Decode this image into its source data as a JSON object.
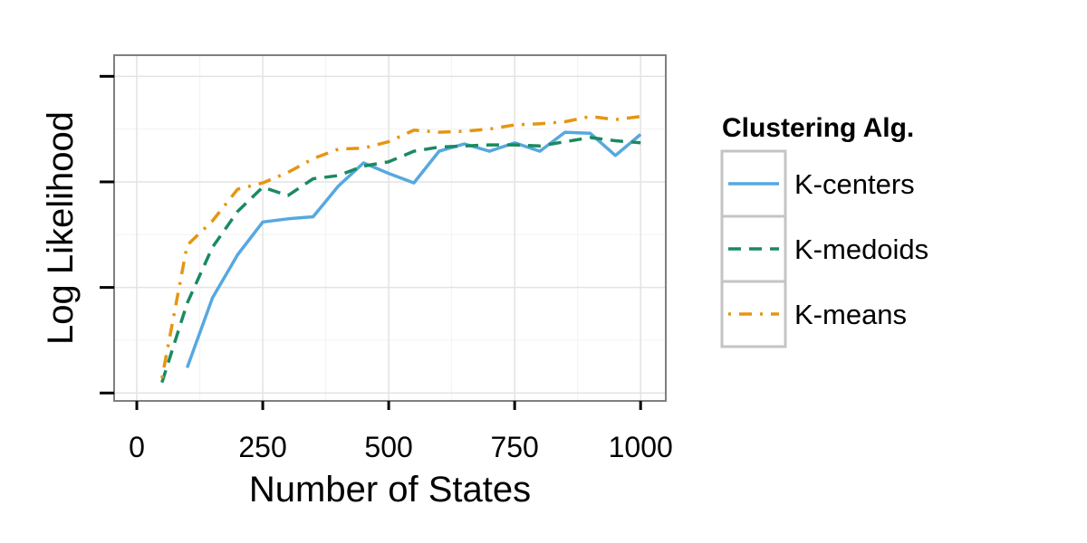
{
  "chart_data": {
    "type": "line",
    "xlabel": "Number of States",
    "ylabel": "Log Likelihood",
    "xlim": [
      -45,
      1050
    ],
    "ylim": [
      0.925,
      4.2
    ],
    "x_ticks": [
      0,
      250,
      500,
      750,
      1000
    ],
    "x_tick_labels": [
      "0",
      "250",
      "500",
      "750",
      "1000"
    ],
    "y_ticks": [
      1,
      2,
      3,
      4
    ],
    "y_tick_labels_visible": false,
    "grid": true,
    "legend": {
      "title": "Clustering Alg.",
      "position": "right"
    },
    "series": [
      {
        "name": "K-centers",
        "color": "#56a8e0",
        "dash": "solid",
        "x": [
          100,
          150,
          200,
          250,
          300,
          350,
          400,
          450,
          500,
          550,
          600,
          650,
          700,
          750,
          800,
          850,
          900,
          950,
          1000
        ],
        "y": [
          1.24,
          1.9,
          2.31,
          2.62,
          2.65,
          2.67,
          2.96,
          3.18,
          3.08,
          2.99,
          3.29,
          3.36,
          3.29,
          3.37,
          3.29,
          3.47,
          3.46,
          3.25,
          3.45
        ]
      },
      {
        "name": "K-medoids",
        "color": "#1a8a5f",
        "dash": "dashed",
        "x": [
          50,
          100,
          150,
          200,
          250,
          300,
          350,
          400,
          450,
          500,
          550,
          600,
          650,
          700,
          750,
          800,
          850,
          900,
          950,
          1000
        ],
        "y": [
          1.1,
          1.85,
          2.38,
          2.72,
          2.95,
          2.87,
          3.03,
          3.06,
          3.15,
          3.19,
          3.29,
          3.33,
          3.34,
          3.35,
          3.35,
          3.34,
          3.38,
          3.42,
          3.39,
          3.37
        ]
      },
      {
        "name": "K-means",
        "color": "#e69512",
        "dash": "dashdot",
        "x": [
          50,
          100,
          150,
          200,
          250,
          300,
          350,
          400,
          450,
          500,
          550,
          600,
          650,
          700,
          750,
          800,
          850,
          900,
          950,
          1000
        ],
        "y": [
          1.14,
          2.4,
          2.63,
          2.93,
          2.99,
          3.09,
          3.22,
          3.31,
          3.32,
          3.38,
          3.49,
          3.47,
          3.48,
          3.5,
          3.54,
          3.55,
          3.57,
          3.62,
          3.59,
          3.62
        ]
      }
    ]
  }
}
